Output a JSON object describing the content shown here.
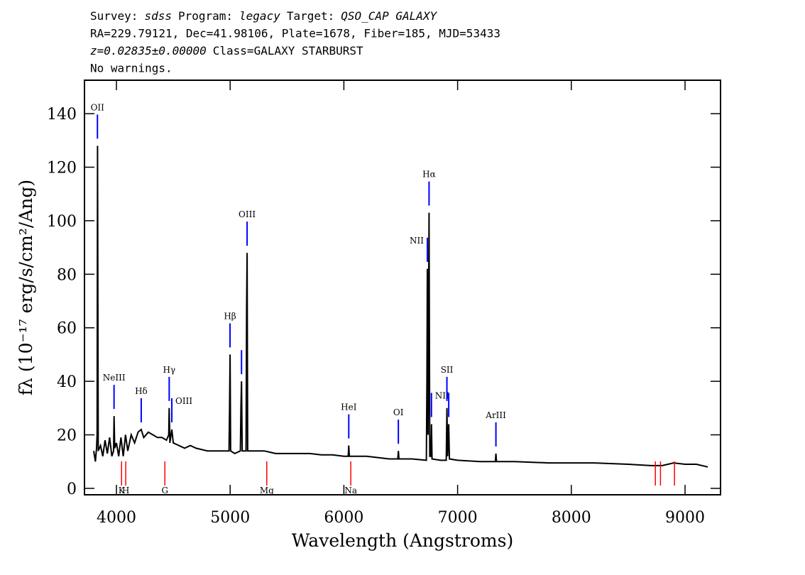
{
  "chart_data": {
    "type": "line",
    "header": [
      [
        {
          "text": "Survey:"
        },
        {
          "text": "sdss",
          "italic": true
        },
        {
          "text": "Program:"
        },
        {
          "text": "legacy",
          "italic": true
        },
        {
          "text": "Target:"
        },
        {
          "text": "QSO_CAP GALAXY",
          "italic": true
        }
      ],
      [
        {
          "text": "RA=229.79121, Dec=41.98106, Plate=1678, Fiber=185, MJD=53433"
        }
      ],
      [
        {
          "text": "z=0.02835±0.00000",
          "italic": true
        },
        {
          "text": "Class=GALAXY STARBURST"
        }
      ],
      [
        {
          "text": "No warnings."
        }
      ]
    ],
    "x_label": "Wavelength (Angstroms)",
    "y_label": "fλ (10⁻¹⁷ erg/s/cm²/Ang)",
    "xlim": [
      3719,
      9312
    ],
    "ylim": [
      -2.4,
      152.5
    ],
    "xticks": [
      4000,
      5000,
      6000,
      7000,
      8000,
      9000
    ],
    "yticks": [
      0,
      20,
      40,
      60,
      80,
      100,
      120,
      140
    ],
    "series": [
      {
        "name": "flux",
        "color": "#000000",
        "x": [
          3800,
          3815,
          3825,
          3830,
          3834,
          3840,
          3860,
          3880,
          3900,
          3920,
          3940,
          3960,
          3975,
          3979,
          3985,
          4000,
          4020,
          4040,
          4060,
          4080,
          4100,
          4130,
          4160,
          4190,
          4218,
          4240,
          4280,
          4320,
          4360,
          4400,
          4440,
          4460,
          4464,
          4470,
          4487,
          4500,
          4550,
          4600,
          4650,
          4700,
          4800,
          4900,
          4990,
          4995,
          4999,
          5004,
          5040,
          5090,
          5095,
          5100,
          5106,
          5140,
          5145,
          5149,
          5154,
          5200,
          5300,
          5400,
          5500,
          5600,
          5700,
          5800,
          5900,
          6000,
          6038,
          6043,
          6048,
          6200,
          6400,
          6474,
          6479,
          6484,
          6600,
          6725,
          6730,
          6734,
          6740,
          6745,
          6749,
          6755,
          6765,
          6770,
          6775,
          6850,
          6900,
          6906,
          6912,
          6922,
          6928,
          7000,
          7200,
          7332,
          7337,
          7342,
          7500,
          7800,
          8000,
          8200,
          8500,
          8700,
          8800,
          8900,
          9000,
          9100,
          9200
        ],
        "values": [
          14,
          10,
          15,
          20,
          128,
          14,
          16,
          12,
          18,
          13,
          19,
          12,
          14,
          27,
          15,
          17,
          12,
          19,
          12,
          20,
          14,
          20,
          17,
          21,
          22,
          19,
          21,
          20,
          19,
          19,
          18,
          20,
          30,
          17,
          22,
          17,
          16,
          15,
          16,
          15,
          14,
          14,
          14,
          30,
          50,
          14,
          13,
          14,
          30,
          40,
          14,
          14,
          67,
          88,
          14,
          14,
          14,
          13,
          13,
          13,
          13,
          12.5,
          12.5,
          12,
          12,
          16,
          12,
          12,
          11,
          11,
          14,
          11,
          11,
          10.5,
          40,
          82,
          20,
          70,
          103,
          12,
          12,
          24,
          11,
          10.5,
          10.5,
          30,
          12,
          24,
          11,
          10.5,
          10,
          10,
          13,
          10,
          10,
          9.5,
          9.5,
          9.5,
          9,
          8.5,
          8.5,
          9.5,
          9,
          9,
          8
        ]
      }
    ],
    "emission_lines": [
      {
        "label": "OII",
        "wavelength": 3833
      },
      {
        "label": "NeIII",
        "wavelength": 3979
      },
      {
        "label": "Hδ",
        "wavelength": 4218
      },
      {
        "label": "Hγ",
        "wavelength": 4464
      },
      {
        "label": "OIII",
        "wavelength": 4487
      },
      {
        "label": "Hβ",
        "wavelength": 4999
      },
      {
        "label": null,
        "wavelength": 5100
      },
      {
        "label": "OIII",
        "wavelength": 5149
      },
      {
        "label": "HeI",
        "wavelength": 6043
      },
      {
        "label": "OI",
        "wavelength": 6479
      },
      {
        "label": "NII",
        "wavelength": 6734
      },
      {
        "label": "Hα",
        "wavelength": 6749
      },
      {
        "label": "NII",
        "wavelength": 6770
      },
      {
        "label": "SII",
        "wavelength": 6906
      },
      {
        "label": null,
        "wavelength": 6922
      },
      {
        "label": "ArIII",
        "wavelength": 7337
      }
    ],
    "absorption_lines": [
      {
        "label": "K",
        "wavelength": 4045
      },
      {
        "label": "H",
        "wavelength": 4082
      },
      {
        "label": "G",
        "wavelength": 4426
      },
      {
        "label": "Mg",
        "wavelength": 5322
      },
      {
        "label": "Na",
        "wavelength": 6061
      },
      {
        "label": null,
        "wavelength": 8739
      },
      {
        "label": null,
        "wavelength": 8784
      },
      {
        "label": null,
        "wavelength": 8907
      }
    ],
    "emission_color": "#0000ff",
    "absorption_color": "#ff0000"
  }
}
